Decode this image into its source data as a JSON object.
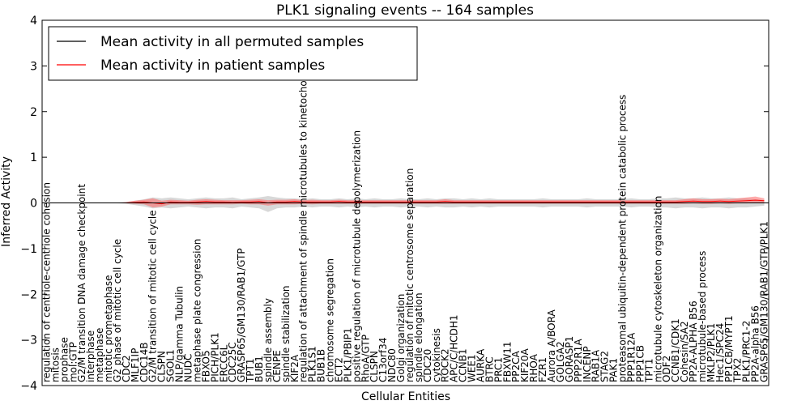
{
  "chart_data": {
    "type": "line",
    "title": "PLK1 signaling events -- 164 samples",
    "xlabel": "Cellular Entities",
    "ylabel": "Inferred Activity",
    "ylim": [
      -4,
      4
    ],
    "yticks": [
      "4",
      "3",
      "2",
      "1",
      "0",
      "−1",
      "−2",
      "−3",
      "−4"
    ],
    "ytick_values": [
      4,
      3,
      2,
      1,
      0,
      -1,
      -2,
      -3,
      -4
    ],
    "legend_position": "top-left",
    "legend": [
      {
        "label": "Mean activity in all permuted samples",
        "color": "#000000"
      },
      {
        "label": "Mean activity in patient samples",
        "color": "#ff0000"
      }
    ],
    "categories": [
      "regulation of centriole-centriole cohesion",
      "mitosis",
      "prophase",
      "mol:GTP",
      "G2/M transition DNA damage checkpoint",
      "interphase",
      "metaphase",
      "mitotic prometaphase",
      "G2 phase of mitotic cell cycle",
      "CDC2",
      "MLF1IP",
      "CDC14B",
      "G2/M transition of mitotic cell cycle",
      "CLSPN",
      "SGOL1",
      "NLP/gamma Tubulin",
      "NUDC",
      "metaphase plate congression",
      "FBXO5",
      "PICH/PLK1",
      "ERCC6L",
      "CDC25C",
      "GRASP65/GM130/RAB1/GTP",
      "TPT1",
      "BUB1",
      "spindle assembly",
      "CENPE",
      "spindle stabilization",
      "KIF2A",
      "regulation of attachment of spindle microtubules to kinetochore",
      "PLK1S1",
      "BUB1B",
      "chromosome segregation",
      "ECT2",
      "PLK1/PBIP1",
      "positive regulation of microtubule depolymerization",
      "RhoA/GTP",
      "CLSPN",
      "C13orf34",
      "NDC80",
      "Golgi organization",
      "regulation of mitotic centrosome separation",
      "spindle elongation",
      "CDC20",
      "cytokinesis",
      "ROCK2",
      "APC/C/HCDH1",
      "CCNB1",
      "WEE1",
      "AURKA",
      "BTRC",
      "PRC1",
      "FBXW11",
      "PP2CA",
      "KIF20A",
      "RHOA",
      "FZR1",
      "Aurora A/BORA",
      "GOLGA2",
      "GORASP1",
      "PPP2R1A",
      "INCENP",
      "RAB1A",
      "STAG2",
      "PAK1",
      "proteasomal ubiquitin-dependent protein catabolic process",
      "PPP1R12A",
      "PPP1CB",
      "TPT1",
      "microtubule cytoskeleton organization",
      "ODF2",
      "CCNB1/CDK1",
      "Cohesin/SA2",
      "PP2A-ALPHA B56",
      "microtubule-based process",
      "MKLP2/PLK1",
      "Hec1/SPC24",
      "PP1CB/MYPT1",
      "TPX2",
      "PLK1/PRC1-2",
      "PP2A-alpha B56",
      "GRASP65/GM130/RAB1/GTP/PLK1"
    ],
    "series": [
      {
        "name": "Mean activity in all permuted samples",
        "color": "#000000",
        "values": [
          0,
          0,
          0,
          0,
          0,
          0,
          0,
          0,
          0,
          0,
          0,
          0,
          0,
          0,
          0,
          0,
          0,
          0,
          0,
          0,
          0,
          0,
          0,
          0,
          0,
          0,
          0,
          0,
          0,
          0,
          0,
          0,
          0,
          0,
          0,
          0,
          0,
          0,
          0,
          0,
          0,
          0,
          0,
          0,
          0,
          0,
          0,
          0,
          0,
          0,
          0,
          0,
          0,
          0,
          0,
          0,
          0,
          0,
          0,
          0,
          0,
          0,
          0,
          0,
          0,
          0,
          0,
          0,
          0,
          0,
          0,
          0,
          0,
          0,
          0,
          0,
          0,
          0,
          0,
          0,
          0,
          0
        ],
        "band_low": [
          -0.01,
          -0.01,
          -0.01,
          -0.01,
          -0.01,
          -0.01,
          -0.01,
          -0.01,
          -0.01,
          -0.02,
          -0.05,
          -0.08,
          -0.12,
          -0.1,
          -0.12,
          -0.1,
          -0.08,
          -0.1,
          -0.12,
          -0.1,
          -0.1,
          -0.12,
          -0.08,
          -0.1,
          -0.12,
          -0.2,
          -0.12,
          -0.1,
          -0.1,
          -0.08,
          -0.1,
          -0.08,
          -0.08,
          -0.1,
          -0.08,
          -0.1,
          -0.08,
          -0.1,
          -0.08,
          -0.08,
          -0.1,
          -0.08,
          -0.08,
          -0.1,
          -0.08,
          -0.1,
          -0.1,
          -0.08,
          -0.1,
          -0.08,
          -0.1,
          -0.08,
          -0.08,
          -0.08,
          -0.08,
          -0.08,
          -0.1,
          -0.08,
          -0.08,
          -0.08,
          -0.08,
          -0.1,
          -0.08,
          -0.08,
          -0.08,
          -0.08,
          -0.1,
          -0.08,
          -0.08,
          -0.1,
          -0.1,
          -0.12,
          -0.1,
          -0.1,
          -0.12,
          -0.1,
          -0.1,
          -0.12,
          -0.1,
          -0.1,
          -0.08,
          -0.06
        ],
        "band_high": [
          0.01,
          0.01,
          0.01,
          0.01,
          0.01,
          0.01,
          0.01,
          0.01,
          0.01,
          0.02,
          0.05,
          0.08,
          0.12,
          0.1,
          0.12,
          0.1,
          0.08,
          0.1,
          0.12,
          0.1,
          0.1,
          0.12,
          0.08,
          0.1,
          0.12,
          0.15,
          0.12,
          0.1,
          0.1,
          0.08,
          0.1,
          0.08,
          0.08,
          0.1,
          0.08,
          0.1,
          0.08,
          0.1,
          0.08,
          0.08,
          0.1,
          0.08,
          0.08,
          0.1,
          0.08,
          0.1,
          0.1,
          0.08,
          0.1,
          0.08,
          0.1,
          0.08,
          0.08,
          0.08,
          0.08,
          0.08,
          0.1,
          0.08,
          0.08,
          0.08,
          0.08,
          0.1,
          0.08,
          0.08,
          0.08,
          0.08,
          0.1,
          0.08,
          0.08,
          0.1,
          0.1,
          0.12,
          0.1,
          0.1,
          0.12,
          0.1,
          0.1,
          0.12,
          0.1,
          0.1,
          0.08,
          0.06
        ]
      },
      {
        "name": "Mean activity in patient samples",
        "color": "#ff0000",
        "values": [
          0,
          0,
          0,
          0,
          0,
          0,
          0,
          0,
          0,
          0,
          0.01,
          0.02,
          0,
          -0.02,
          0.02,
          0.01,
          0.01,
          0.02,
          0.03,
          0.02,
          0.02,
          0.01,
          0.02,
          0.02,
          0.03,
          0,
          0.02,
          0.02,
          0.03,
          0.02,
          0.02,
          0.02,
          0.02,
          0.03,
          0.02,
          0.02,
          0.02,
          0.02,
          0.02,
          0.02,
          0.02,
          0.02,
          0.02,
          0.02,
          0.02,
          0.03,
          0.02,
          0.02,
          0.02,
          0.02,
          0.02,
          0.02,
          0.02,
          0.02,
          0.02,
          0.02,
          0.02,
          0.02,
          0.02,
          0.02,
          0.02,
          0.02,
          0.02,
          0.02,
          0.02,
          0.02,
          0.02,
          0.02,
          0.02,
          0.02,
          0.02,
          0.02,
          0.03,
          0.04,
          0.03,
          0.03,
          0.04,
          0.03,
          0.04,
          0.05,
          0.06,
          0.05
        ],
        "band_low": [
          0,
          0,
          0,
          0,
          0,
          0,
          0,
          0,
          0,
          -0.01,
          -0.02,
          -0.03,
          -0.1,
          -0.08,
          -0.03,
          -0.03,
          -0.03,
          -0.04,
          -0.03,
          -0.03,
          -0.03,
          -0.03,
          -0.02,
          -0.03,
          -0.03,
          -0.06,
          -0.03,
          -0.03,
          -0.03,
          -0.02,
          -0.03,
          -0.02,
          -0.02,
          -0.02,
          -0.02,
          -0.02,
          -0.02,
          -0.02,
          -0.02,
          -0.02,
          -0.02,
          -0.02,
          -0.02,
          -0.02,
          -0.02,
          -0.02,
          -0.02,
          -0.02,
          -0.02,
          -0.02,
          -0.02,
          -0.02,
          -0.02,
          -0.02,
          -0.02,
          -0.02,
          -0.02,
          -0.02,
          -0.02,
          -0.02,
          -0.02,
          -0.02,
          -0.02,
          -0.02,
          -0.02,
          -0.02,
          -0.02,
          -0.02,
          -0.02,
          -0.02,
          -0.02,
          -0.02,
          -0.02,
          -0.01,
          -0.02,
          -0.02,
          -0.01,
          -0.02,
          -0.01,
          -0.01,
          0,
          -0.01
        ],
        "band_high": [
          0,
          0,
          0,
          0,
          0,
          0,
          0,
          0,
          0,
          0.02,
          0.05,
          0.07,
          0.1,
          0.05,
          0.07,
          0.06,
          0.05,
          0.07,
          0.08,
          0.07,
          0.06,
          0.06,
          0.06,
          0.07,
          0.08,
          0.06,
          0.07,
          0.07,
          0.08,
          0.06,
          0.07,
          0.06,
          0.06,
          0.07,
          0.06,
          0.06,
          0.06,
          0.06,
          0.06,
          0.06,
          0.06,
          0.06,
          0.06,
          0.06,
          0.06,
          0.08,
          0.06,
          0.06,
          0.06,
          0.06,
          0.06,
          0.06,
          0.06,
          0.06,
          0.06,
          0.06,
          0.06,
          0.06,
          0.06,
          0.06,
          0.06,
          0.06,
          0.06,
          0.06,
          0.06,
          0.06,
          0.06,
          0.06,
          0.06,
          0.06,
          0.06,
          0.06,
          0.08,
          0.1,
          0.08,
          0.08,
          0.09,
          0.08,
          0.1,
          0.12,
          0.14,
          0.1
        ]
      }
    ]
  }
}
